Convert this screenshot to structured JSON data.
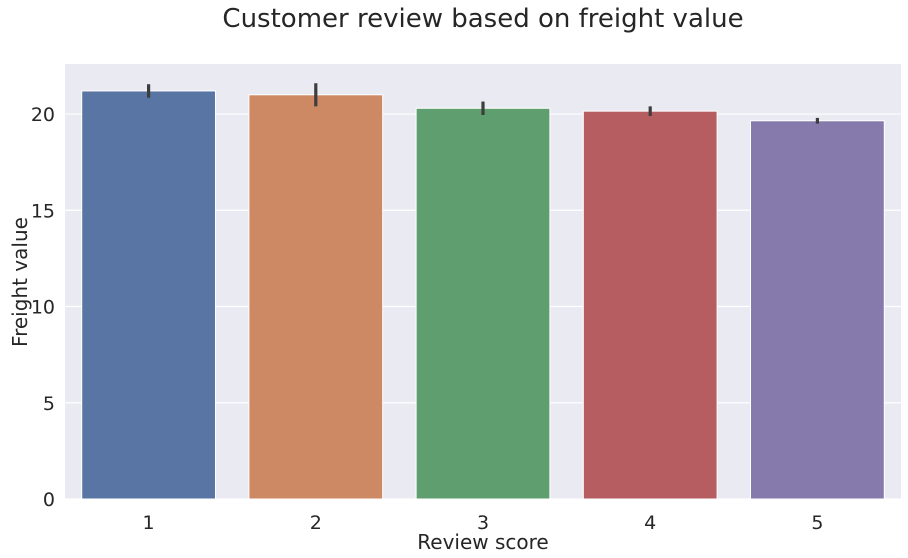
{
  "chart_data": {
    "type": "bar",
    "title": "Customer review based on freight value",
    "xlabel": "Review score",
    "ylabel": "Freight value",
    "categories": [
      "1",
      "2",
      "3",
      "4",
      "5"
    ],
    "values": [
      21.2,
      21.0,
      20.3,
      20.15,
      19.65
    ],
    "error_bars": [
      [
        20.85,
        21.55
      ],
      [
        20.4,
        21.6
      ],
      [
        19.95,
        20.65
      ],
      [
        19.9,
        20.4
      ],
      [
        19.5,
        19.8
      ]
    ],
    "colors": [
      "#5975a4",
      "#cc8963",
      "#5f9e6e",
      "#b55d60",
      "#857aab"
    ],
    "ylim": [
      0,
      22.6
    ],
    "yticks": [
      "0",
      "5",
      "10",
      "15",
      "20"
    ],
    "grid": true,
    "background": "#eaeaf2"
  }
}
